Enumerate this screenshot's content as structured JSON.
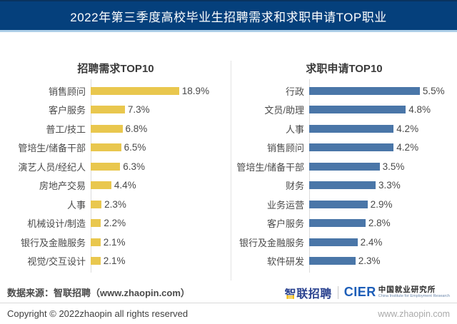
{
  "header": {
    "title": "2022年第三季度高校毕业生招聘需求和求职申请TOP职业",
    "bg_color": "#05407c",
    "strip_color": "#aecfe8"
  },
  "chart_data": [
    {
      "type": "bar",
      "orientation": "horizontal",
      "title": "招聘需求TOP10",
      "bar_color": "#e9c74e",
      "unit": "%",
      "xlim": [
        0,
        20
      ],
      "grid": false,
      "categories": [
        "销售顾问",
        "客户服务",
        "普工/技工",
        "管培生/储备干部",
        "演艺人员/经纪人",
        "房地产交易",
        "人事",
        "机械设计/制造",
        "银行及金融服务",
        "视觉/交互设计"
      ],
      "values": [
        18.9,
        7.3,
        6.8,
        6.5,
        6.3,
        4.4,
        2.3,
        2.2,
        2.1,
        2.1
      ],
      "labels": [
        "18.9%",
        "7.3%",
        "6.8%",
        "6.5%",
        "6.3%",
        "4.4%",
        "2.3%",
        "2.2%",
        "2.1%",
        "2.1%"
      ]
    },
    {
      "type": "bar",
      "orientation": "horizontal",
      "title": "求职申请TOP10",
      "bar_color": "#4a76a8",
      "unit": "%",
      "xlim": [
        0,
        6
      ],
      "grid": false,
      "categories": [
        "行政",
        "文员/助理",
        "人事",
        "销售顾问",
        "管培生/储备干部",
        "财务",
        "业务运营",
        "客户服务",
        "银行及金融服务",
        "软件研发"
      ],
      "values": [
        5.5,
        4.8,
        4.2,
        4.2,
        3.5,
        3.3,
        2.9,
        2.8,
        2.4,
        2.3
      ],
      "labels": [
        "5.5%",
        "4.8%",
        "4.2%",
        "4.2%",
        "3.5%",
        "3.3%",
        "2.9%",
        "2.8%",
        "2.4%",
        "2.3%"
      ]
    }
  ],
  "footer": {
    "source": "数据来源：智联招聘（www.zhaopin.com）",
    "zhaopin_logo_first_char": "智",
    "zhaopin_logo_rest": "联招聘",
    "cier_acronym": "CIER",
    "cier_cn": "中国就业研究所",
    "cier_en": "China Institute for Employment Research",
    "copyright": "Copyright ©  2022zhaopin all rights reserved",
    "website": "www.zhaopin.com"
  }
}
